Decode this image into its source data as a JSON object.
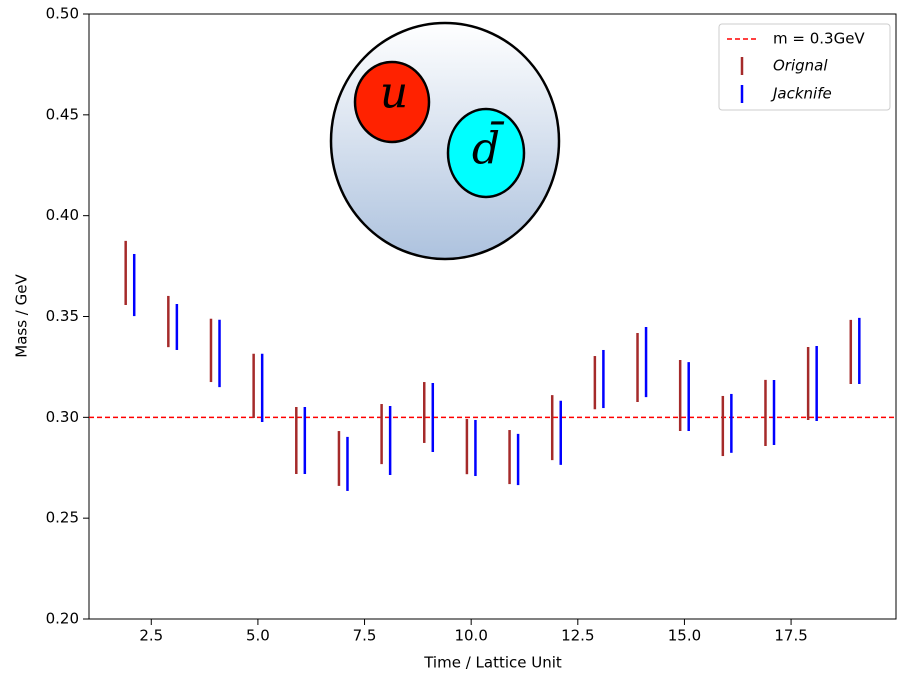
{
  "chart_data": {
    "type": "errorbar",
    "xlabel": "Time / Lattice Unit",
    "ylabel": "Mass / GeV",
    "xlim": [
      1.04,
      19.96
    ],
    "ylim": [
      0.2,
      0.5
    ],
    "xticks": [
      2.5,
      {
        "value": 5,
        "label": "5.0"
      },
      7.5,
      {
        "value": 10,
        "label": "10.0"
      },
      12.5,
      {
        "value": 15,
        "label": "15.0"
      },
      17.5
    ],
    "yticks": [
      {
        "value": 0.2,
        "label": "0.20"
      },
      0.25,
      {
        "value": 0.3,
        "label": "0.30"
      },
      0.35,
      {
        "value": 0.4,
        "label": "0.40"
      },
      0.45,
      {
        "value": 0.5,
        "label": "0.50"
      }
    ],
    "legend": "upper right",
    "reference_line": {
      "name": "m = 0.3GeV",
      "value": 0.3,
      "color": "#ff0000"
    },
    "series": [
      {
        "name": "Orignal",
        "color": "#a52a2a",
        "x": [
          1.9,
          2.9,
          3.9,
          4.9,
          5.9,
          6.9,
          7.9,
          8.9,
          9.9,
          10.9,
          11.9,
          12.9,
          13.9,
          14.9,
          15.9,
          16.9,
          17.9,
          18.9
        ],
        "values": [
          0.3716,
          0.3475,
          0.3332,
          0.3156,
          0.2885,
          0.2796,
          0.2917,
          0.3024,
          0.2855,
          0.2803,
          0.2949,
          0.3172,
          0.3247,
          0.3108,
          0.2957,
          0.3022,
          0.3168,
          0.3324
        ],
        "errors": [
          0.0159,
          0.0127,
          0.0157,
          0.0159,
          0.0166,
          0.0136,
          0.0149,
          0.0151,
          0.0137,
          0.0134,
          0.0161,
          0.0132,
          0.0171,
          0.0176,
          0.0149,
          0.0164,
          0.0181,
          0.0159
        ]
      },
      {
        "name": "Jacknife",
        "color": "#0000ff",
        "x": [
          2.1,
          3.1,
          4.1,
          5.1,
          6.1,
          7.1,
          8.1,
          9.1,
          10.1,
          11.1,
          12.1,
          13.1,
          14.1,
          15.1,
          16.1,
          17.1,
          18.1,
          19.1
        ],
        "values": [
          0.3656,
          0.3448,
          0.3317,
          0.3146,
          0.2885,
          0.2769,
          0.2885,
          0.2999,
          0.2848,
          0.2791,
          0.2923,
          0.319,
          0.3274,
          0.3103,
          0.297,
          0.3024,
          0.3168,
          0.3329
        ],
        "errors": [
          0.0154,
          0.0114,
          0.0167,
          0.0169,
          0.0166,
          0.0134,
          0.0171,
          0.0171,
          0.0139,
          0.0127,
          0.0159,
          0.0144,
          0.0174,
          0.0171,
          0.0146,
          0.0161,
          0.0186,
          0.0164
        ]
      }
    ],
    "annotations": [
      "u",
      "d̄"
    ]
  }
}
